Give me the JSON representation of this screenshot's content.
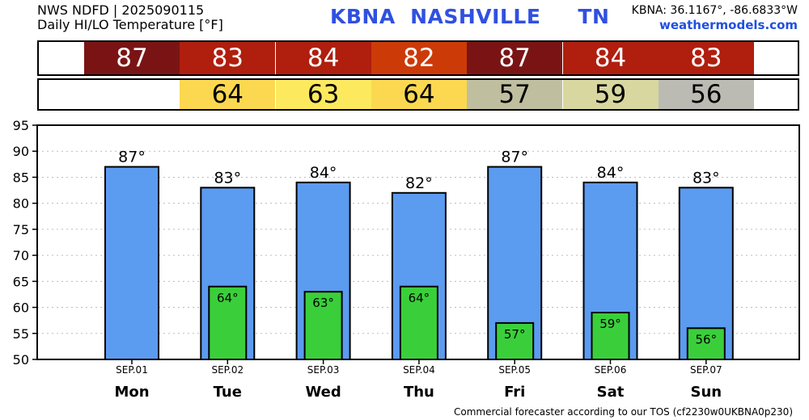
{
  "header": {
    "line1": "NWS NDFD | 2025090115",
    "line2": "Daily HI/LO Temperature [°F]",
    "station_title": "KBNA  NASHVILLE     TN",
    "coords": "KBNA: 36.1167°, -86.6833°W",
    "site": "weathermodels.com"
  },
  "footer": "Commercial forecaster according to our TOS (cf2230w0UKBNA0p230)",
  "colors": {
    "high_bar": "#5b9bf0",
    "low_bar": "#3acf3a",
    "high_strip": [
      "#7a1414",
      "#b01e0e",
      "#b01e0e",
      "#cc3a08",
      "#7a1414",
      "#b01e0e",
      "#b01e0e"
    ],
    "low_strip": [
      null,
      "#fbd84f",
      "#fce95e",
      "#fbd84f",
      "#bfbf9f",
      "#d7d79f",
      "#bbbbb3"
    ]
  },
  "chart_data": {
    "type": "bar",
    "categories": [
      "SEP.01",
      "SEP.02",
      "SEP.03",
      "SEP.04",
      "SEP.05",
      "SEP.06",
      "SEP.07"
    ],
    "day_labels": [
      "Mon",
      "Tue",
      "Wed",
      "Thu",
      "Fri",
      "Sat",
      "Sun"
    ],
    "series": [
      {
        "values": [
          87,
          83,
          84,
          82,
          87,
          84,
          83
        ],
        "labels": [
          "87°",
          "83°",
          "84°",
          "82°",
          "87°",
          "84°",
          "83°"
        ]
      },
      {
        "values": [
          null,
          64,
          63,
          64,
          57,
          59,
          56
        ],
        "labels": [
          "",
          "64°",
          "63°",
          "64°",
          "57°",
          "59°",
          "56°"
        ]
      }
    ],
    "strip_high": [
      "87",
      "83",
      "84",
      "82",
      "87",
      "84",
      "83"
    ],
    "strip_low": [
      "",
      "64",
      "63",
      "64",
      "57",
      "59",
      "56"
    ],
    "ylim": [
      50,
      95
    ],
    "yticks": [
      50,
      55,
      60,
      65,
      70,
      75,
      80,
      85,
      90,
      95
    ],
    "grid": true
  }
}
